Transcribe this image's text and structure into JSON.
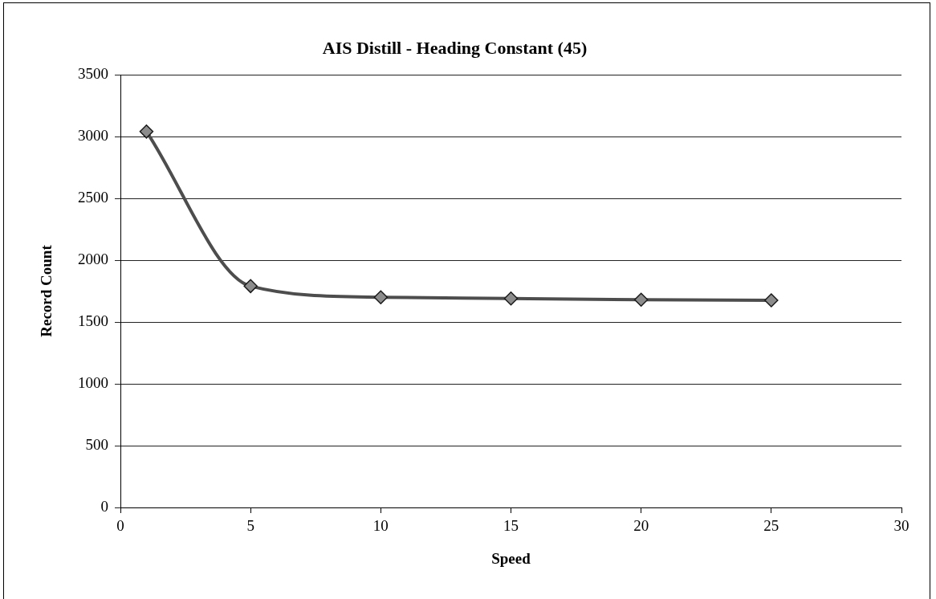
{
  "chart_data": {
    "type": "line",
    "title": "AIS Distill - Heading Constant (45)",
    "xlabel": "Speed",
    "ylabel": "Record Count",
    "x": [
      1,
      5,
      10,
      15,
      20,
      25
    ],
    "series": [
      {
        "color": "#4d4d4d",
        "values": [
          3040,
          1790,
          1700,
          1690,
          1680,
          1675
        ]
      }
    ],
    "xlim": [
      0,
      30
    ],
    "xticks": [
      0,
      5,
      10,
      15,
      20,
      25,
      30
    ],
    "ylim": [
      0,
      3500
    ],
    "yticks": [
      0,
      500,
      1000,
      1500,
      2000,
      2500,
      3000,
      3500
    ],
    "grid": "y",
    "marker": "diamond",
    "line_style": "solid"
  }
}
